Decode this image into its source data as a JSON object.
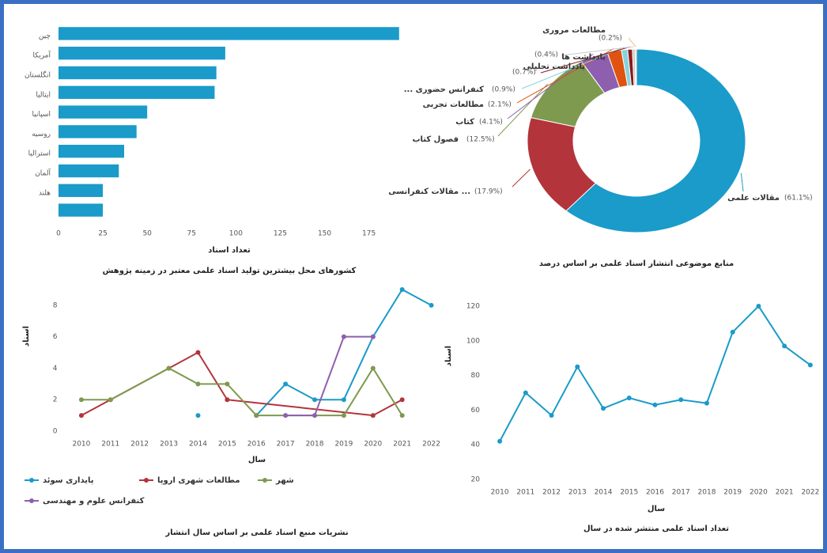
{
  "chart_data": [
    {
      "type": "barh",
      "title": "کشورهای محل بیشترین تولید اسناد علمی معتبر در زمینه پژوهش",
      "xlabel": "تعداد اسناد",
      "categories": [
        "چین",
        "آمریکا",
        "انگلستان",
        "ایتالیا",
        "اسپانیا",
        "روسیه",
        "استرالیا",
        "آلمان",
        "هلند",
        null
      ],
      "values": [
        192,
        94,
        89,
        88,
        50,
        44,
        37,
        34,
        25,
        25
      ],
      "color": "#1a9bc9",
      "xlim": [
        0,
        197
      ],
      "xticks": [
        0,
        25,
        50,
        75,
        100,
        125,
        150,
        175
      ]
    },
    {
      "type": "pie",
      "title": "منابع موضوعی انتشار اسناد علمی بر اساس درصد",
      "donut": true,
      "categories": [
        "مقالات علمی",
        "مقالات کنفرانسی ...",
        "فصول کتاب",
        "کتاب",
        "مطالعات تجربی",
        "... کنفرانس حضوری",
        "یادداشت تحلیلی",
        "یادداشت ها",
        "مطالعات مروری"
      ],
      "values": [
        61.1,
        17.9,
        12.5,
        4.1,
        2.1,
        0.9,
        0.7,
        0.4,
        0.2
      ],
      "value_labels": [
        "(61.1%)",
        "(17.9%)",
        "(12.5%)",
        "(4.1%)",
        "(2.1%)",
        "(0.9%)",
        "(0.7%)",
        "(0.4%)",
        "(0.2%)"
      ],
      "colors": [
        "#1a9bc9",
        "#b3343b",
        "#7d9a4f",
        "#8e5fae",
        "#e0520f",
        "#86d3de",
        "#8b1a1a",
        "#c9c9c9",
        "#f2c27a"
      ]
    },
    {
      "type": "line",
      "title": "نشریات منبع اسناد علمی بر اساس سال انتشار",
      "xlabel": "سال",
      "ylabel": "اسناد",
      "xlim": [
        2009.5,
        2022.5
      ],
      "xticks": [
        2010,
        2011,
        2012,
        2013,
        2014,
        2015,
        2016,
        2017,
        2018,
        2019,
        2020,
        2021,
        2022
      ],
      "ylim": [
        0,
        9
      ],
      "yticks": [
        0,
        2,
        4,
        6,
        8
      ],
      "legend": "bottom",
      "series": [
        {
          "name": "پایداری سوئد",
          "color": "#1a9bc9",
          "x": [
            2014,
            2015,
            2016,
            2017,
            2018,
            2019,
            2020,
            2021,
            2022
          ],
          "values": [
            1,
            null,
            1,
            3,
            2,
            2,
            6,
            9,
            8
          ]
        },
        {
          "name": "مطالعات شهری اروپا",
          "color": "#b3343b",
          "x": [
            2010,
            2011,
            2013,
            2014,
            2015,
            2020,
            2021
          ],
          "values": [
            1,
            2,
            4,
            5,
            2,
            1,
            2
          ]
        },
        {
          "name": "شهر",
          "color": "#7d9a4f",
          "x": [
            2010,
            2011,
            2013,
            2014,
            2015,
            2016,
            2019,
            2020,
            2021
          ],
          "values": [
            2,
            2,
            4,
            3,
            3,
            1,
            1,
            4,
            1
          ]
        },
        {
          "name": "کنفرانس علوم و مهندسی",
          "color": "#8e5fae",
          "x": [
            2017,
            2018,
            2019,
            2020
          ],
          "values": [
            1,
            1,
            6,
            6
          ]
        }
      ]
    },
    {
      "type": "line",
      "title": "تعداد اسناد علمی منتشر شده در سال",
      "xlabel": "سال",
      "ylabel": "اسناد",
      "xlim": [
        2009.6,
        2022.4
      ],
      "xticks": [
        2010,
        2011,
        2012,
        2013,
        2014,
        2015,
        2016,
        2017,
        2018,
        2019,
        2020,
        2021,
        2022
      ],
      "ylim": [
        20,
        125
      ],
      "yticks": [
        20,
        40,
        60,
        80,
        100,
        120
      ],
      "series": [
        {
          "color": "#1a9bc9",
          "x": [
            2010,
            2011,
            2012,
            2013,
            2014,
            2015,
            2016,
            2017,
            2018,
            2019,
            2020,
            2021,
            2022
          ],
          "values": [
            42,
            70,
            57,
            85,
            61,
            67,
            63,
            66,
            64,
            105,
            120,
            97,
            86
          ]
        }
      ]
    }
  ]
}
